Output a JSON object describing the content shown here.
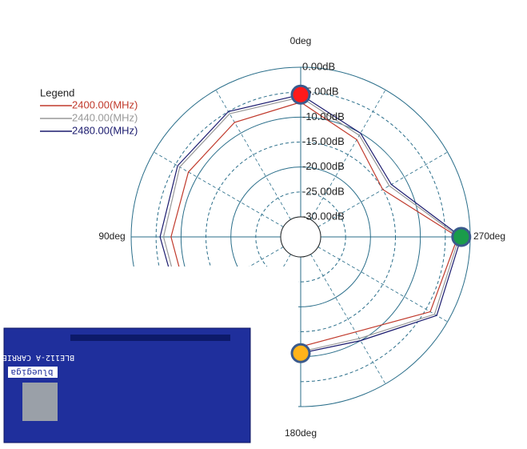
{
  "chart_data": {
    "type": "polar",
    "legend_title": "Legend",
    "x": [
      0,
      30,
      60,
      90,
      120,
      150,
      180,
      210,
      240,
      270,
      300,
      330
    ],
    "xticks": [
      {
        "value": 0,
        "label": "0deg"
      },
      {
        "value": 90,
        "label": "90deg"
      },
      {
        "value": 180,
        "label": "180deg"
      },
      {
        "value": 270,
        "label": "270deg"
      }
    ],
    "ylim": [
      -30,
      0
    ],
    "yticks": [
      {
        "value": 0,
        "label": "0.00dB"
      },
      {
        "value": -5,
        "label": "-5.00dB"
      },
      {
        "value": -10,
        "label": "-10.00dB"
      },
      {
        "value": -15,
        "label": "-15.00dB"
      },
      {
        "value": -20,
        "label": "-20.00dB"
      },
      {
        "value": -25,
        "label": "-25.00dB"
      },
      {
        "value": -30,
        "label": "-30.00dB"
      }
    ],
    "series": [
      {
        "name": "2400.00(MHz)",
        "color": "#c0392b",
        "values": [
          -7,
          -7.5,
          -8,
          -8,
          -8,
          -9,
          -12,
          -12,
          -4,
          -2.5,
          -15,
          -11.5
        ]
      },
      {
        "name": "2440.00(MHz)",
        "color": "#999999",
        "values": [
          -6,
          -5.5,
          -6,
          -6.5,
          -6.5,
          -8.5,
          -11,
          -10.5,
          -3,
          -2.2,
          -13.5,
          -10.5
        ]
      },
      {
        "name": "2480.00(MHz)",
        "color": "#1a1a6e",
        "values": [
          -5.5,
          -5,
          -5.5,
          -5.8,
          -6,
          -8,
          -10.7,
          -10,
          -2.5,
          -1.8,
          -13,
          -10
        ]
      }
    ],
    "markers": [
      {
        "angle": 0,
        "value": -5.5,
        "color": "#ff1a1a"
      },
      {
        "angle": 270,
        "value": -1.8,
        "color": "#1a9c4a"
      },
      {
        "angle": 180,
        "value": -10.7,
        "color": "#ffb31a"
      }
    ],
    "board": {
      "title": "BLE112-A CARRIER",
      "brand": "bluegiga"
    }
  }
}
